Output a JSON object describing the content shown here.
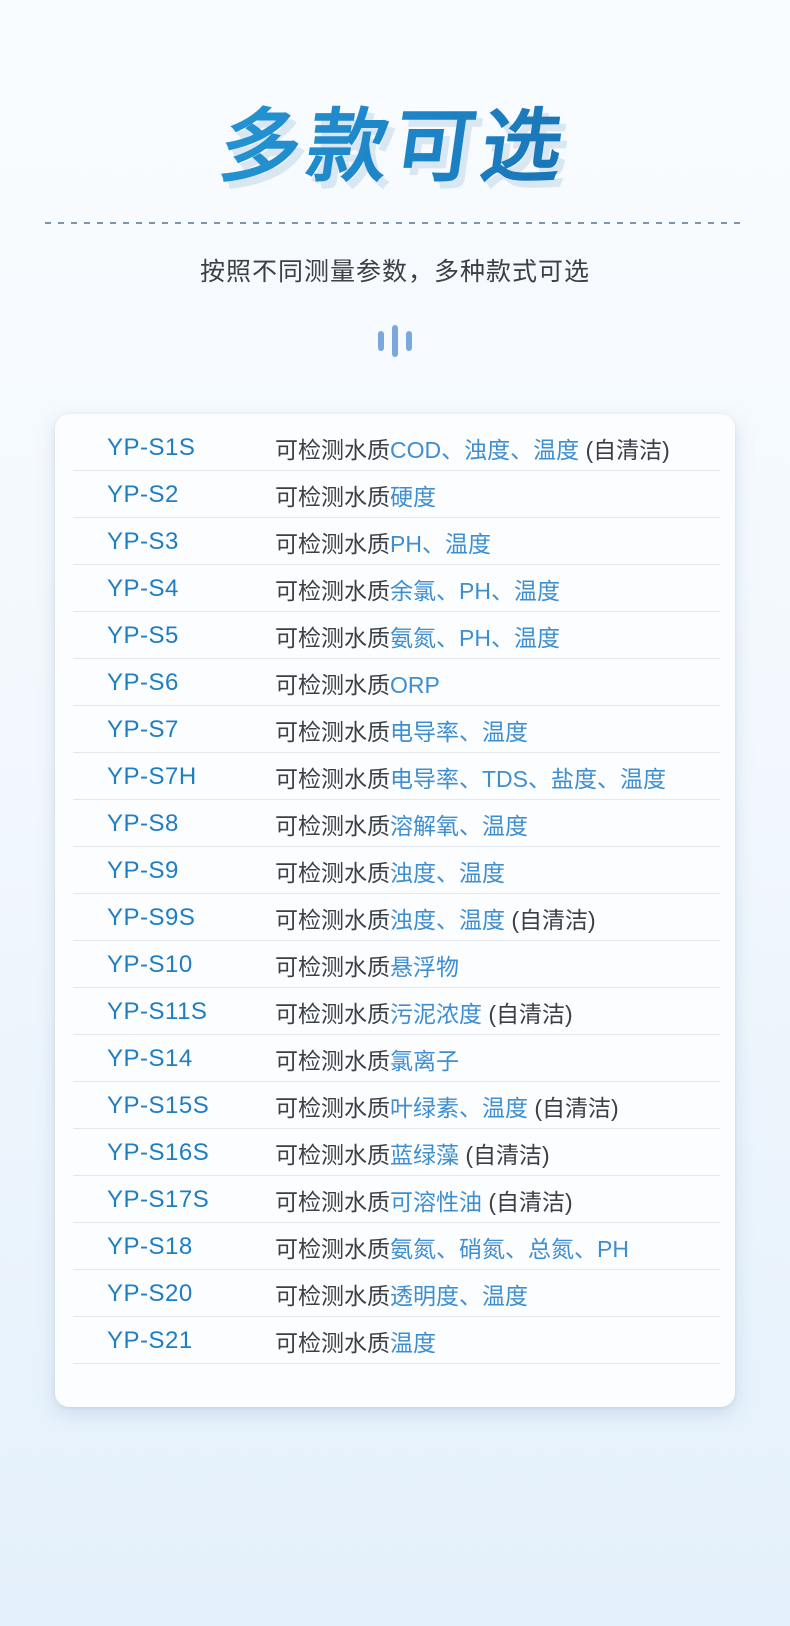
{
  "page": {
    "title": "多款可选",
    "subtitle": "按照不同测量参数，多种款式可选",
    "decor": {
      "bars_icon": "three-vertical-bars"
    },
    "colors": {
      "title_gradient_start": "#2ba2de",
      "title_gradient_end": "#13609e",
      "model_blue": "#1e7ec4",
      "param_blue": "#3e8ed2",
      "text_dark": "#3b4046",
      "row_divider": "#e3e6ea",
      "dashed_line": "#7e96ac",
      "bars_icon": "#7aa8da",
      "card_background": "#fcfdfe",
      "page_background_top": "#f9fcff",
      "page_background_bottom": "#e4f0fb"
    }
  },
  "table": {
    "row_prefix": "可检测水质",
    "rows": [
      {
        "model": "YP-S1S",
        "params": "COD、浊度、温度",
        "suffix": " (自清洁)"
      },
      {
        "model": "YP-S2",
        "params": "硬度",
        "suffix": ""
      },
      {
        "model": "YP-S3",
        "params": "PH、温度",
        "suffix": ""
      },
      {
        "model": "YP-S4",
        "params": "余氯、PH、温度",
        "suffix": ""
      },
      {
        "model": "YP-S5",
        "params": "氨氮、PH、温度",
        "suffix": ""
      },
      {
        "model": "YP-S6",
        "params": "ORP",
        "suffix": ""
      },
      {
        "model": "YP-S7",
        "params": "电导率、温度",
        "suffix": ""
      },
      {
        "model": "YP-S7H",
        "params": "电导率、TDS、盐度、温度",
        "suffix": ""
      },
      {
        "model": "YP-S8",
        "params": "溶解氧、温度",
        "suffix": ""
      },
      {
        "model": "YP-S9",
        "params": "浊度、温度",
        "suffix": ""
      },
      {
        "model": "YP-S9S",
        "params": "浊度、温度",
        "suffix": " (自清洁)"
      },
      {
        "model": "YP-S10",
        "params": "悬浮物",
        "suffix": ""
      },
      {
        "model": "YP-S11S",
        "params": "污泥浓度",
        "suffix": " (自清洁)"
      },
      {
        "model": "YP-S14",
        "params": "氯离子",
        "suffix": ""
      },
      {
        "model": "YP-S15S",
        "params": "叶绿素、温度",
        "suffix": " (自清洁)"
      },
      {
        "model": "YP-S16S",
        "params": "蓝绿藻",
        "suffix": " (自清洁)"
      },
      {
        "model": "YP-S17S",
        "params": "可溶性油",
        "suffix": " (自清洁)"
      },
      {
        "model": "YP-S18",
        "params": "氨氮、硝氮、总氮、PH",
        "suffix": ""
      },
      {
        "model": "YP-S20",
        "params": "透明度、温度",
        "suffix": ""
      },
      {
        "model": "YP-S21",
        "params": "温度",
        "suffix": ""
      }
    ]
  }
}
